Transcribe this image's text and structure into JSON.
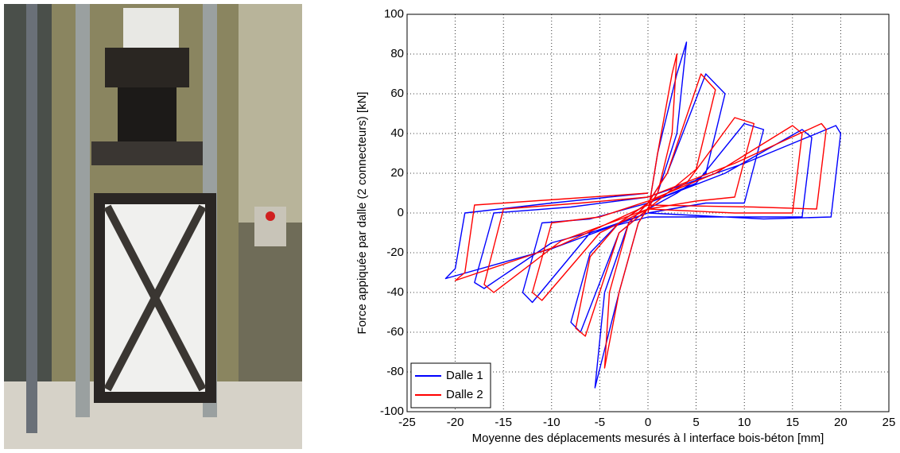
{
  "chart_data": {
    "type": "line",
    "xlabel": "Moyenne des déplacements mesurés à l interface bois-béton [mm]",
    "ylabel": "Force appiquée par dalle (2 connecteurs) [kN]",
    "xlim": [
      -25,
      25
    ],
    "xticks": [
      -25,
      -20,
      -15,
      -10,
      -5,
      0,
      5,
      10,
      15,
      20,
      25
    ],
    "ylim": [
      -100,
      100
    ],
    "yticks": [
      -100,
      -80,
      -60,
      -40,
      -20,
      0,
      20,
      40,
      60,
      80,
      100
    ],
    "grid": true,
    "legend": "lower left",
    "series": [
      {
        "name": "Dalle 1",
        "color": "#0000ff",
        "x": [
          0,
          1,
          3,
          4,
          3,
          1,
          -1,
          -3,
          -5.5,
          -4.5,
          -2,
          0,
          2,
          6,
          8,
          6,
          3,
          0,
          -3,
          -7,
          -8,
          -6,
          -3,
          0,
          5,
          10,
          12,
          10,
          6,
          0,
          -6,
          -12,
          -13,
          -11,
          -6,
          0,
          8,
          16,
          17,
          16,
          10,
          0,
          -10,
          -17,
          -18,
          -16,
          -8,
          0,
          10,
          19.5,
          20,
          19,
          12,
          0,
          -10,
          -21,
          -20,
          -19,
          -10,
          0
        ],
        "values": [
          0,
          30,
          70,
          86,
          40,
          10,
          -5,
          -40,
          -88,
          -40,
          -5,
          5,
          20,
          70,
          60,
          20,
          10,
          2,
          -10,
          -60,
          -55,
          -20,
          -5,
          5,
          15,
          45,
          42,
          5,
          5,
          0,
          -10,
          -45,
          -40,
          -5,
          -3,
          5,
          20,
          42,
          38,
          -2,
          -2,
          -2,
          -15,
          -38,
          -35,
          0,
          3,
          8,
          25,
          44,
          40,
          -2,
          -3,
          0,
          -18,
          -33,
          -28,
          0,
          5,
          10
        ]
      },
      {
        "name": "Dalle 2",
        "color": "#ff0000",
        "x": [
          0,
          1,
          2.5,
          3,
          2.5,
          1,
          -1,
          -3,
          -4.5,
          -4,
          -2,
          0,
          2,
          5.5,
          7,
          5,
          2,
          0,
          -3,
          -6.5,
          -7.5,
          -6,
          -3,
          0,
          4,
          9,
          11,
          9,
          5,
          0,
          -5,
          -11,
          -12,
          -10,
          -5,
          0,
          7,
          15,
          16,
          15,
          9,
          0,
          -9,
          -16,
          -17,
          -15,
          -7,
          0,
          9,
          18,
          18.5,
          17.5,
          11,
          0,
          -9,
          -20,
          -19,
          -18,
          -9,
          0
        ],
        "values": [
          0,
          30,
          70,
          80,
          40,
          10,
          -5,
          -40,
          -78,
          -40,
          -5,
          5,
          20,
          70,
          62,
          22,
          10,
          2,
          -10,
          -62,
          -58,
          -22,
          -5,
          5,
          15,
          48,
          45,
          8,
          6,
          2,
          -10,
          -44,
          -40,
          -5,
          -2,
          6,
          20,
          44,
          40,
          0,
          0,
          2,
          -14,
          -40,
          -36,
          2,
          5,
          8,
          25,
          45,
          42,
          2,
          3,
          4,
          -16,
          -34,
          -30,
          4,
          7,
          10
        ]
      }
    ]
  }
}
